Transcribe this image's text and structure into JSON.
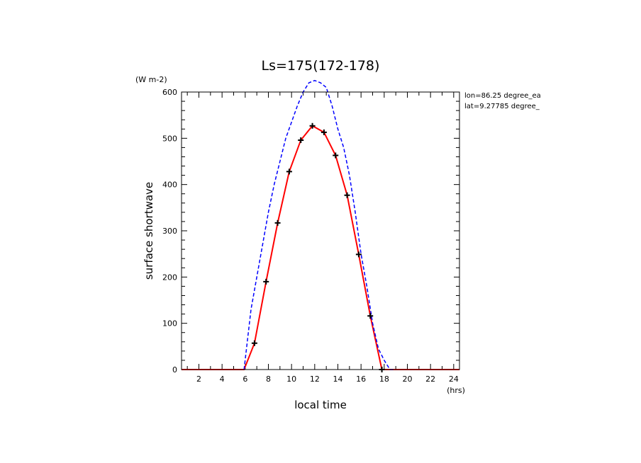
{
  "chart_data": {
    "type": "line",
    "title": "Ls=175(172-178)",
    "xlabel": "local time",
    "xunit": "(hrs)",
    "ylabel": "surface shortwave",
    "yunit": "(W m-2)",
    "xlim": [
      0.5,
      24.5
    ],
    "ylim": [
      0,
      600
    ],
    "xticks": [
      2,
      4,
      6,
      8,
      10,
      12,
      14,
      16,
      18,
      20,
      22,
      24
    ],
    "yticks": [
      0,
      100,
      200,
      300,
      400,
      500,
      600
    ],
    "annotations": [
      "lon=86.25 degree_ea",
      "lat=9.27785 degree_"
    ],
    "series": [
      {
        "style": "solid",
        "color": "#ff0000",
        "x": [
          0.5,
          1,
          2,
          3,
          4,
          5,
          5.9,
          6.8,
          7.8,
          8.8,
          9.8,
          10.8,
          11.8,
          12.8,
          13.8,
          14.8,
          15.8,
          16.8,
          17.8,
          18,
          19,
          20,
          21,
          22,
          23,
          24,
          24.5
        ],
        "values": [
          0,
          0,
          0,
          0,
          0,
          0,
          0,
          57,
          190,
          317,
          428,
          496,
          527,
          513,
          463,
          377,
          249,
          116,
          0,
          0,
          0,
          0,
          0,
          0,
          0,
          0,
          0
        ]
      },
      {
        "style": "dashed",
        "color": "#0000ff",
        "x": [
          5.9,
          6.5,
          7,
          7.5,
          8,
          8.5,
          9,
          9.5,
          10,
          10.5,
          11,
          11.5,
          12,
          12.5,
          13,
          13.5,
          14,
          14.5,
          15,
          15.5,
          16,
          16.5,
          17,
          17.5,
          18,
          18.5,
          19
        ],
        "values": [
          0,
          130,
          200,
          270,
          340,
          400,
          450,
          500,
          535,
          570,
          600,
          620,
          625,
          620,
          610,
          570,
          520,
          480,
          420,
          340,
          250,
          180,
          100,
          45,
          20,
          0,
          0
        ]
      },
      {
        "style": "markers",
        "marker": "plus",
        "color": "#000000",
        "x": [
          6.8,
          7.8,
          8.8,
          9.8,
          10.8,
          11.8,
          12.8,
          13.8,
          14.8,
          15.8,
          16.8,
          17.8
        ],
        "values": [
          57,
          190,
          317,
          428,
          496,
          527,
          513,
          463,
          377,
          249,
          116,
          0
        ]
      }
    ]
  }
}
